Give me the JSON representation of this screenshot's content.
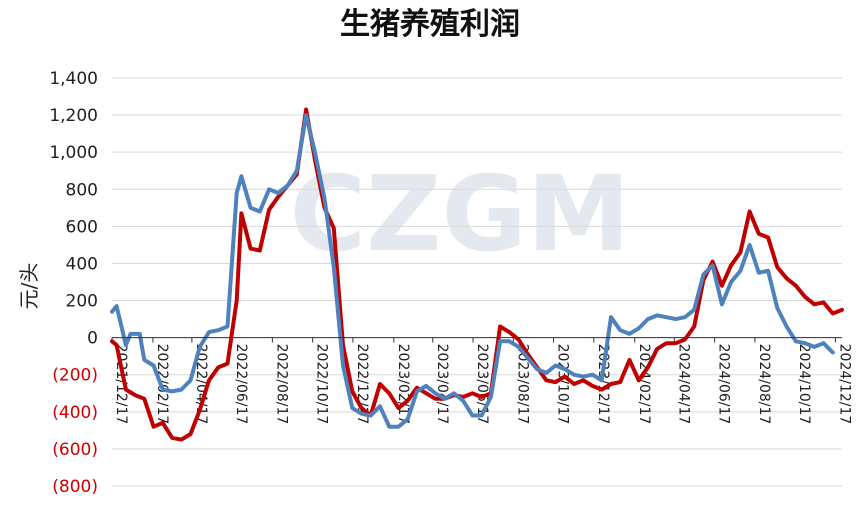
{
  "chart_data": {
    "type": "line",
    "title": "生猪养殖利润",
    "ylabel": "元/头",
    "watermark": "CZGM",
    "ylim": [
      -800,
      1400
    ],
    "yticks": [
      {
        "value": 1400,
        "label": "1,400"
      },
      {
        "value": 1200,
        "label": "1,200"
      },
      {
        "value": 1000,
        "label": "1,000"
      },
      {
        "value": 800,
        "label": "800"
      },
      {
        "value": 600,
        "label": "600"
      },
      {
        "value": 400,
        "label": "400"
      },
      {
        "value": 200,
        "label": "200"
      },
      {
        "value": 0,
        "label": "0"
      },
      {
        "value": -200,
        "label": "(200)"
      },
      {
        "value": -400,
        "label": "(400)"
      },
      {
        "value": -600,
        "label": "(600)"
      },
      {
        "value": -800,
        "label": "(800)"
      }
    ],
    "negative_tick_color": "#d00000",
    "positive_tick_color": "#222222",
    "grid": true,
    "x_tick_labels": [
      "2021/12/17",
      "2022/02/17",
      "2022/04/17",
      "2022/06/17",
      "2022/08/17",
      "2022/10/17",
      "2022/12/17",
      "2023/02/17",
      "2023/04/17",
      "2023/06/17",
      "2023/08/17",
      "2023/10/17",
      "2023/12/17",
      "2024/02/17",
      "2024/04/17",
      "2024/06/17",
      "2024/08/17",
      "2024/10/17",
      "2024/12/17"
    ],
    "x_range": [
      "2021/12/17",
      "2024/12/27"
    ],
    "series": [
      {
        "color": "#c00000",
        "points": [
          [
            "2021/12/17",
            -20
          ],
          [
            "2021/12/24",
            -40
          ],
          [
            "2022/01/07",
            -280
          ],
          [
            "2022/01/21",
            -310
          ],
          [
            "2022/02/04",
            -330
          ],
          [
            "2022/02/18",
            -480
          ],
          [
            "2022/03/04",
            -460
          ],
          [
            "2022/03/18",
            -540
          ],
          [
            "2022/04/01",
            -550
          ],
          [
            "2022/04/15",
            -520
          ],
          [
            "2022/04/29",
            -390
          ],
          [
            "2022/05/13",
            -230
          ],
          [
            "2022/05/27",
            -160
          ],
          [
            "2022/06/10",
            -140
          ],
          [
            "2022/06/24",
            200
          ],
          [
            "2022/07/01",
            670
          ],
          [
            "2022/07/15",
            480
          ],
          [
            "2022/07/29",
            470
          ],
          [
            "2022/08/12",
            690
          ],
          [
            "2022/08/26",
            760
          ],
          [
            "2022/09/09",
            820
          ],
          [
            "2022/09/23",
            880
          ],
          [
            "2022/10/07",
            1230
          ],
          [
            "2022/10/21",
            950
          ],
          [
            "2022/11/04",
            700
          ],
          [
            "2022/11/18",
            590
          ],
          [
            "2022/12/02",
            -40
          ],
          [
            "2022/12/16",
            -290
          ],
          [
            "2022/12/30",
            -380
          ],
          [
            "2023/01/13",
            -420
          ],
          [
            "2023/01/27",
            -250
          ],
          [
            "2023/02/10",
            -300
          ],
          [
            "2023/02/24",
            -380
          ],
          [
            "2023/03/10",
            -340
          ],
          [
            "2023/03/24",
            -270
          ],
          [
            "2023/04/07",
            -300
          ],
          [
            "2023/04/21",
            -330
          ],
          [
            "2023/05/05",
            -330
          ],
          [
            "2023/05/19",
            -310
          ],
          [
            "2023/06/02",
            -320
          ],
          [
            "2023/06/16",
            -300
          ],
          [
            "2023/06/30",
            -320
          ],
          [
            "2023/07/14",
            -300
          ],
          [
            "2023/07/28",
            60
          ],
          [
            "2023/08/11",
            30
          ],
          [
            "2023/08/25",
            -10
          ],
          [
            "2023/09/08",
            -90
          ],
          [
            "2023/09/22",
            -160
          ],
          [
            "2023/10/06",
            -230
          ],
          [
            "2023/10/20",
            -240
          ],
          [
            "2023/11/03",
            -210
          ],
          [
            "2023/11/17",
            -250
          ],
          [
            "2023/12/01",
            -230
          ],
          [
            "2023/12/15",
            -260
          ],
          [
            "2023/12/29",
            -280
          ],
          [
            "2024/01/12",
            -250
          ],
          [
            "2024/01/26",
            -240
          ],
          [
            "2024/02/09",
            -120
          ],
          [
            "2024/02/23",
            -230
          ],
          [
            "2024/03/08",
            -160
          ],
          [
            "2024/03/22",
            -60
          ],
          [
            "2024/04/05",
            -30
          ],
          [
            "2024/04/19",
            -30
          ],
          [
            "2024/05/03",
            -10
          ],
          [
            "2024/05/17",
            60
          ],
          [
            "2024/05/31",
            310
          ],
          [
            "2024/06/14",
            410
          ],
          [
            "2024/06/28",
            280
          ],
          [
            "2024/07/12",
            390
          ],
          [
            "2024/07/26",
            460
          ],
          [
            "2024/08/09",
            680
          ],
          [
            "2024/08/23",
            560
          ],
          [
            "2024/09/06",
            540
          ],
          [
            "2024/09/20",
            380
          ],
          [
            "2024/10/04",
            320
          ],
          [
            "2024/10/18",
            280
          ],
          [
            "2024/11/01",
            220
          ],
          [
            "2024/11/15",
            180
          ],
          [
            "2024/11/29",
            190
          ],
          [
            "2024/12/13",
            130
          ],
          [
            "2024/12/27",
            150
          ]
        ]
      },
      {
        "color": "#4f81bd",
        "points": [
          [
            "2021/12/17",
            140
          ],
          [
            "2021/12/24",
            170
          ],
          [
            "2022/01/07",
            -40
          ],
          [
            "2022/01/14",
            20
          ],
          [
            "2022/01/28",
            20
          ],
          [
            "2022/02/04",
            -120
          ],
          [
            "2022/02/18",
            -150
          ],
          [
            "2022/03/04",
            -280
          ],
          [
            "2022/03/18",
            -290
          ],
          [
            "2022/04/01",
            -280
          ],
          [
            "2022/04/15",
            -230
          ],
          [
            "2022/04/29",
            -50
          ],
          [
            "2022/05/13",
            30
          ],
          [
            "2022/05/27",
            40
          ],
          [
            "2022/06/10",
            60
          ],
          [
            "2022/06/24",
            780
          ],
          [
            "2022/07/01",
            870
          ],
          [
            "2022/07/15",
            700
          ],
          [
            "2022/07/29",
            680
          ],
          [
            "2022/08/12",
            800
          ],
          [
            "2022/08/26",
            780
          ],
          [
            "2022/09/09",
            820
          ],
          [
            "2022/09/23",
            900
          ],
          [
            "2022/10/07",
            1200
          ],
          [
            "2022/10/21",
            990
          ],
          [
            "2022/11/04",
            750
          ],
          [
            "2022/11/18",
            380
          ],
          [
            "2022/12/02",
            -150
          ],
          [
            "2022/12/16",
            -380
          ],
          [
            "2022/12/30",
            -410
          ],
          [
            "2023/01/13",
            -420
          ],
          [
            "2023/01/27",
            -370
          ],
          [
            "2023/02/10",
            -480
          ],
          [
            "2023/02/24",
            -480
          ],
          [
            "2023/03/10",
            -440
          ],
          [
            "2023/03/24",
            -290
          ],
          [
            "2023/04/07",
            -260
          ],
          [
            "2023/04/21",
            -300
          ],
          [
            "2023/05/05",
            -330
          ],
          [
            "2023/05/19",
            -300
          ],
          [
            "2023/06/02",
            -340
          ],
          [
            "2023/06/16",
            -420
          ],
          [
            "2023/06/30",
            -420
          ],
          [
            "2023/07/14",
            -320
          ],
          [
            "2023/07/28",
            -20
          ],
          [
            "2023/08/11",
            -20
          ],
          [
            "2023/08/25",
            -50
          ],
          [
            "2023/09/08",
            -110
          ],
          [
            "2023/09/22",
            -170
          ],
          [
            "2023/10/06",
            -190
          ],
          [
            "2023/10/20",
            -150
          ],
          [
            "2023/11/03",
            -170
          ],
          [
            "2023/11/17",
            -200
          ],
          [
            "2023/12/01",
            -210
          ],
          [
            "2023/12/15",
            -200
          ],
          [
            "2023/12/29",
            -230
          ],
          [
            "2024/01/12",
            110
          ],
          [
            "2024/01/26",
            40
          ],
          [
            "2024/02/09",
            20
          ],
          [
            "2024/02/23",
            50
          ],
          [
            "2024/03/08",
            100
          ],
          [
            "2024/03/22",
            120
          ],
          [
            "2024/04/05",
            110
          ],
          [
            "2024/04/19",
            100
          ],
          [
            "2024/05/03",
            110
          ],
          [
            "2024/05/17",
            150
          ],
          [
            "2024/05/31",
            340
          ],
          [
            "2024/06/14",
            390
          ],
          [
            "2024/06/28",
            180
          ],
          [
            "2024/07/12",
            300
          ],
          [
            "2024/07/26",
            360
          ],
          [
            "2024/08/09",
            500
          ],
          [
            "2024/08/23",
            350
          ],
          [
            "2024/09/06",
            360
          ],
          [
            "2024/09/20",
            160
          ],
          [
            "2024/10/04",
            60
          ],
          [
            "2024/10/18",
            -20
          ],
          [
            "2024/11/01",
            -30
          ],
          [
            "2024/11/15",
            -50
          ],
          [
            "2024/11/29",
            -30
          ],
          [
            "2024/12/13",
            -80
          ]
        ]
      }
    ]
  }
}
